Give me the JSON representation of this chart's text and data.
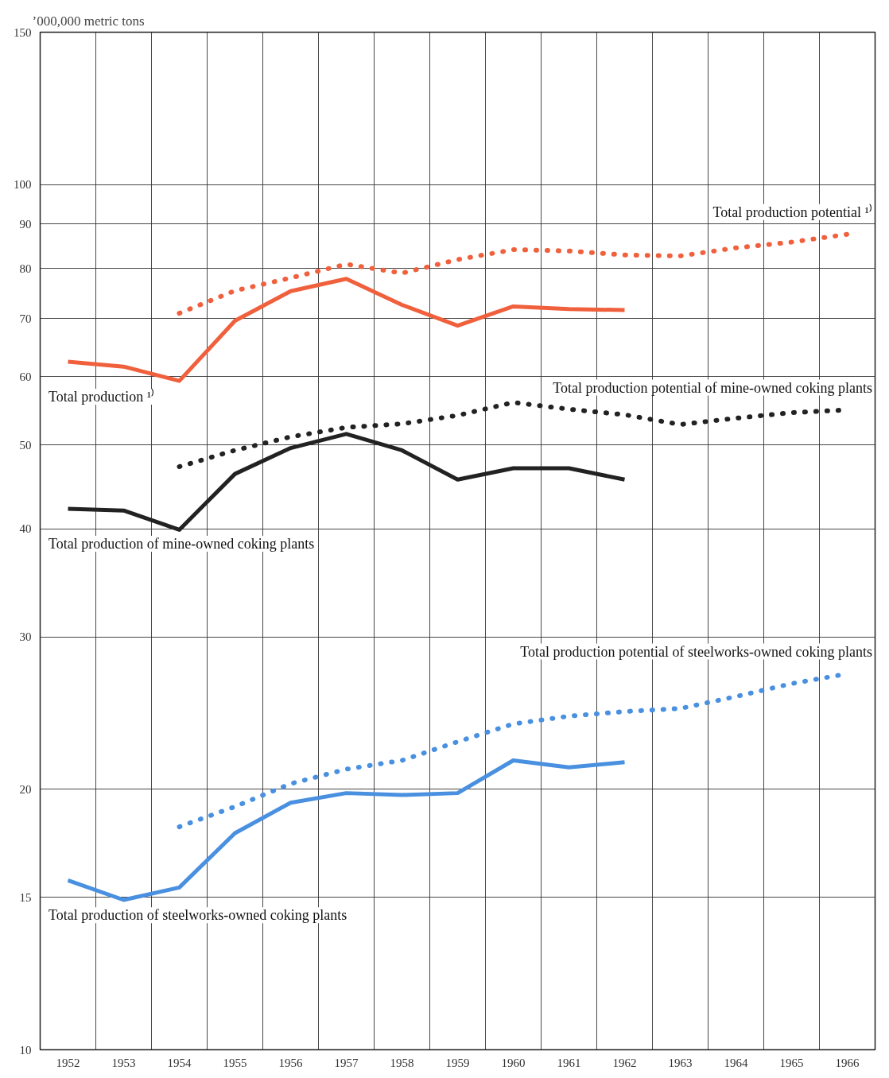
{
  "chart_data": {
    "type": "line",
    "ylabel": "’000,000 metric tons",
    "categories": [
      "1952",
      "1953",
      "1954",
      "1955",
      "1956",
      "1957",
      "1958",
      "1959",
      "1960",
      "1961",
      "1962",
      "1963",
      "1964",
      "1965",
      "1966"
    ],
    "log": "y",
    "ylim": [
      10,
      150
    ],
    "yticks": [
      10,
      15,
      20,
      30,
      40,
      50,
      60,
      70,
      80,
      90,
      100,
      150
    ],
    "grid": true,
    "series": [
      {
        "name": "Total production ¹⁾",
        "color": "#f0603c",
        "line_style": "solid",
        "values": [
          62.4,
          61.6,
          59.3,
          69.6,
          75.3,
          77.8,
          72.6,
          68.7,
          72.3,
          71.8,
          71.6,
          null,
          null,
          null,
          null
        ]
      },
      {
        "name": "Total production potential ¹⁾",
        "color": "#f0603c",
        "line_style": "dotted",
        "values": [
          null,
          null,
          71.0,
          75.4,
          78.0,
          80.9,
          79.0,
          81.9,
          84.1,
          83.8,
          82.9,
          82.7,
          84.5,
          85.8,
          87.6
        ]
      },
      {
        "name": "Total production of mine-owned coking plants",
        "color": "#222222",
        "line_style": "solid",
        "values": [
          42.2,
          42.0,
          39.9,
          46.3,
          49.6,
          51.5,
          49.3,
          45.6,
          47.0,
          47.0,
          45.6,
          null,
          null,
          null,
          null
        ]
      },
      {
        "name": "Total production potential of mine-owned coking plants",
        "color": "#222222",
        "line_style": "dotted",
        "values": [
          null,
          null,
          47.2,
          49.3,
          51.1,
          52.4,
          52.9,
          54.1,
          56.0,
          55.0,
          54.2,
          52.8,
          53.7,
          54.5,
          54.9
        ]
      },
      {
        "name": "Total production of steelworks-owned coking plants",
        "color": "#4a90e0",
        "line_style": "solid",
        "values": [
          15.7,
          14.9,
          15.4,
          17.8,
          19.3,
          19.8,
          19.7,
          19.8,
          21.6,
          21.2,
          21.5,
          null,
          null,
          null,
          null
        ]
      },
      {
        "name": "Total production potential of steelworks-owned coking plants",
        "color": "#4a90e0",
        "line_style": "dotted",
        "values": [
          null,
          null,
          18.1,
          19.1,
          20.3,
          21.1,
          21.6,
          22.7,
          23.8,
          24.3,
          24.6,
          24.8,
          25.6,
          26.5,
          27.2
        ]
      }
    ]
  }
}
